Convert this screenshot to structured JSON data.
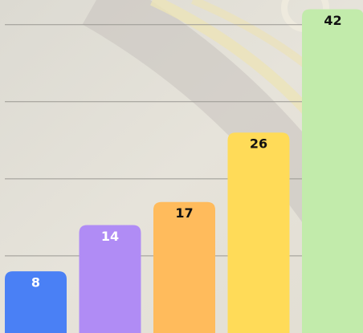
{
  "chart_data": {
    "type": "bar",
    "categories": [
      null,
      null,
      null,
      null,
      null
    ],
    "values": [
      8,
      14,
      17,
      26,
      42
    ],
    "colors": [
      "#4a80f5",
      "#b08cf5",
      "#ffbb5c",
      "#ffdb58",
      "#c2ebab"
    ],
    "label_colors": [
      "#ffffff",
      "#ffffff",
      "#111111",
      "#111111",
      "#111111"
    ],
    "ylim": [
      0,
      43.2
    ],
    "yticks": [
      10,
      20,
      30,
      40
    ],
    "grid": true
  }
}
